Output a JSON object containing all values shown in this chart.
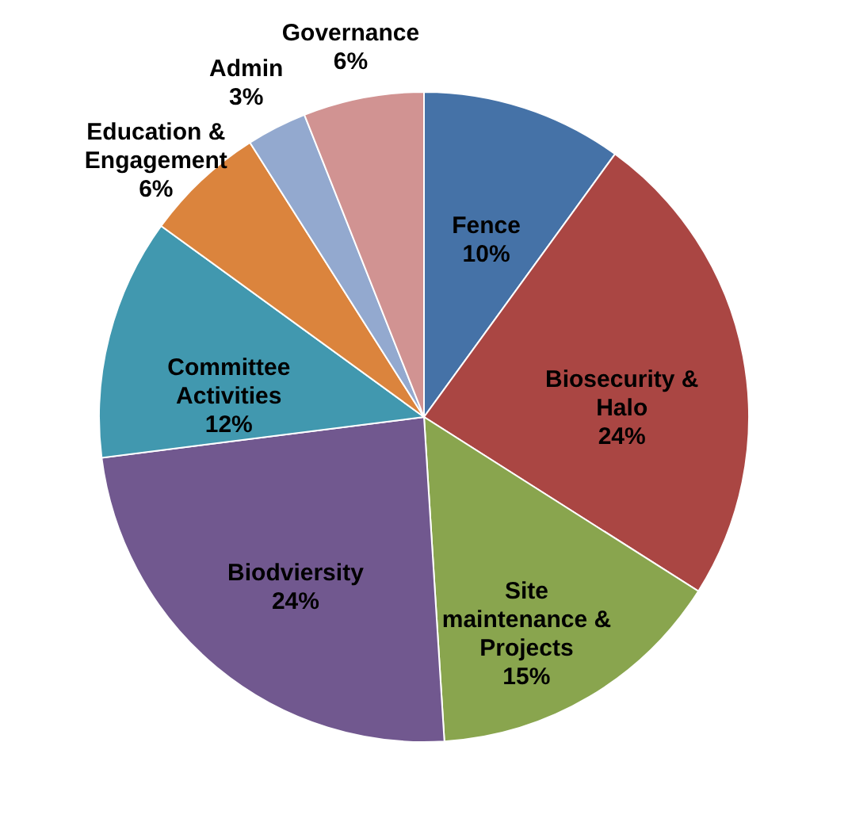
{
  "chart_data": {
    "type": "pie",
    "categories": [
      "Fence",
      "Biosecurity & Halo",
      "Site maintenance & Projects",
      "Biodviersity",
      "Committee Activities",
      "Education & Engagement",
      "Admin",
      "Governance"
    ],
    "values": [
      10,
      24,
      15,
      24,
      12,
      6,
      3,
      6
    ],
    "value_labels": [
      "10%",
      "24%",
      "15%",
      "24%",
      "12%",
      "6%",
      "3%",
      "6%"
    ],
    "colors": [
      "#4572a7",
      "#aa4643",
      "#89a54e",
      "#71588f",
      "#4198af",
      "#db843d",
      "#93a9cf",
      "#d19392"
    ]
  }
}
